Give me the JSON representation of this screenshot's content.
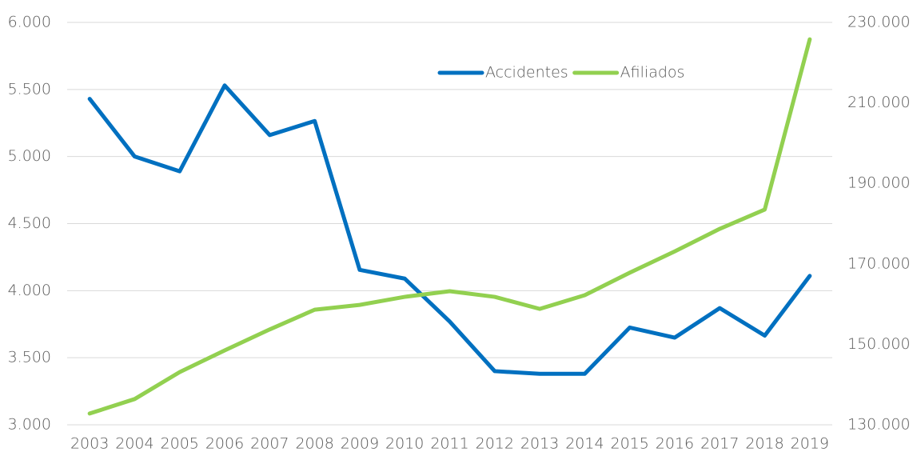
{
  "chart_data": {
    "type": "line",
    "categories": [
      "2003",
      "2004",
      "2005",
      "2006",
      "2007",
      "2008",
      "2009",
      "2010",
      "2011",
      "2012",
      "2013",
      "2014",
      "2015",
      "2016",
      "2017",
      "2018",
      "2019"
    ],
    "series": [
      {
        "name": "Accidentes",
        "color": "#0070c0",
        "values": [
          5430,
          5000,
          4890,
          5530,
          5160,
          5265,
          4155,
          4090,
          3770,
          3400,
          3380,
          3380,
          3725,
          3650,
          3870,
          3665,
          4110
        ]
      },
      {
        "name": "Afiliados",
        "color": "#92d050",
        "axis": "y2",
        "values": [
          132800,
          136400,
          143100,
          148500,
          153700,
          158600,
          159800,
          161800,
          163200,
          161800,
          158800,
          162200,
          167800,
          173100,
          178700,
          183500,
          225800
        ]
      }
    ],
    "ylim": [
      3000,
      6000
    ],
    "yticks": [
      {
        "value": 3000,
        "label": "3.000"
      },
      {
        "value": 3500,
        "label": "3.500"
      },
      {
        "value": 4000,
        "label": "4.000"
      },
      {
        "value": 4500,
        "label": "4.500"
      },
      {
        "value": 5000,
        "label": "5.000"
      },
      {
        "value": 5500,
        "label": "5.500"
      },
      {
        "value": 6000,
        "label": "6.000"
      }
    ],
    "y2lim": [
      130000,
      230000
    ],
    "y2ticks": [
      {
        "value": 130000,
        "label": "130.000"
      },
      {
        "value": 150000,
        "label": "150.000"
      },
      {
        "value": 170000,
        "label": "170.000"
      },
      {
        "value": 190000,
        "label": "190.000"
      },
      {
        "value": 210000,
        "label": "210.000"
      },
      {
        "value": 230000,
        "label": "230.000"
      }
    ],
    "grid": true,
    "legend": "top"
  }
}
